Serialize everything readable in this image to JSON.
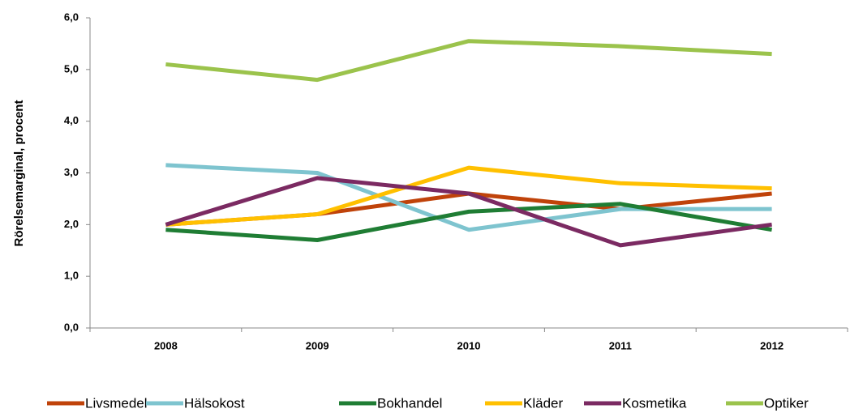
{
  "chart_data": {
    "type": "line",
    "y_label": "Rörelsemarginal, procent",
    "categories": [
      "2008",
      "2009",
      "2010",
      "2011",
      "2012"
    ],
    "series": [
      {
        "name": "Livsmedel",
        "color": "#c0430a",
        "values": [
          2.0,
          2.2,
          2.6,
          2.3,
          2.6
        ]
      },
      {
        "name": "Hälsokost",
        "color": "#7ec4cf",
        "values": [
          3.15,
          3.0,
          1.9,
          2.3,
          2.3
        ]
      },
      {
        "name": "Bokhandel",
        "color": "#1f7d34",
        "values": [
          1.9,
          1.7,
          2.25,
          2.4,
          1.9
        ]
      },
      {
        "name": "Kläder",
        "color": "#ffc000",
        "values": [
          2.0,
          2.2,
          3.1,
          2.8,
          2.7
        ]
      },
      {
        "name": "Kosmetika",
        "color": "#7b2a62",
        "values": [
          2.0,
          2.9,
          2.6,
          1.6,
          2.0
        ]
      },
      {
        "name": "Optiker",
        "color": "#9bc34c",
        "values": [
          5.1,
          4.8,
          5.55,
          5.45,
          5.3
        ]
      }
    ],
    "ylim": [
      0,
      6
    ],
    "yticks": [
      {
        "value": 0,
        "label": "0,0"
      },
      {
        "value": 1,
        "label": "1,0"
      },
      {
        "value": 2,
        "label": "2,0"
      },
      {
        "value": 3,
        "label": "3,0"
      },
      {
        "value": 4,
        "label": "4,0"
      },
      {
        "value": 5,
        "label": "5,0"
      },
      {
        "value": 6,
        "label": "6,0"
      }
    ],
    "grid": false,
    "legend": "bottom"
  }
}
